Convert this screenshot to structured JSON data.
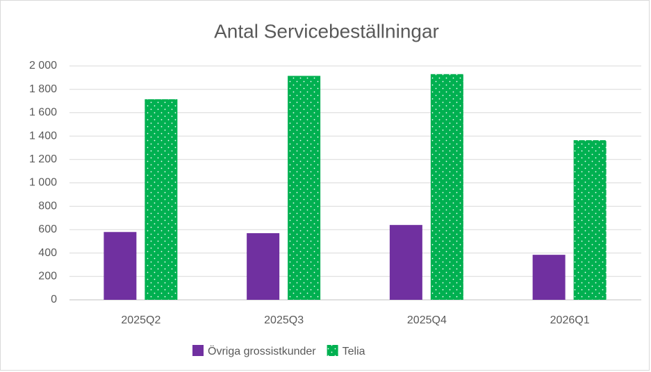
{
  "chart_data": {
    "type": "bar",
    "title": "Antal Servicebeställningar",
    "categories": [
      "2025Q2",
      "2025Q3",
      "2025Q4",
      "2026Q1"
    ],
    "series": [
      {
        "name": "Övriga grossistkunder",
        "color": "#7030a0",
        "values": [
          580,
          570,
          640,
          385
        ]
      },
      {
        "name": "Telia",
        "color": "#00b050",
        "values": [
          1715,
          1915,
          1930,
          1365
        ]
      }
    ],
    "ylim": [
      0,
      2000
    ],
    "yticks": [
      0,
      200,
      400,
      600,
      800,
      {
        "value": 1000,
        "label": "1 000"
      },
      {
        "value": 1200,
        "label": "1 200"
      },
      {
        "value": 1400,
        "label": "1 400"
      },
      {
        "value": 1600,
        "label": "1 600"
      },
      {
        "value": 1800,
        "label": "1 800"
      },
      {
        "value": 2000,
        "label": "2 000"
      }
    ],
    "grid": true,
    "legend": "bottom"
  }
}
